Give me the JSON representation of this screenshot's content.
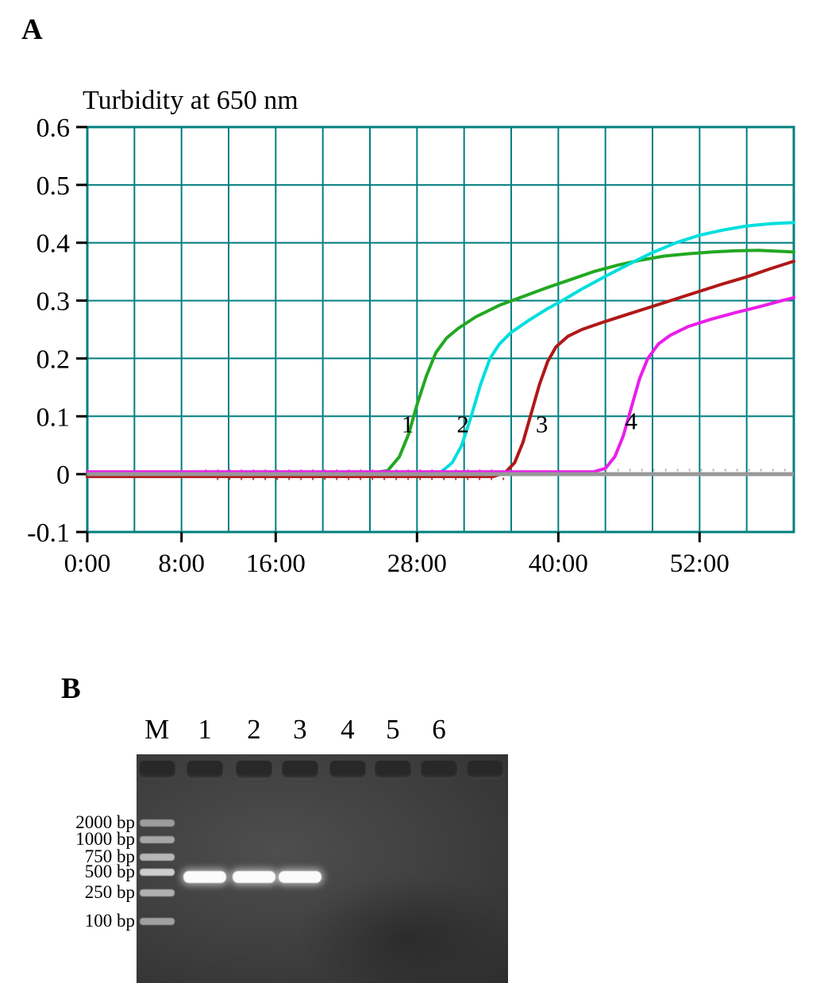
{
  "panels": {
    "a_label": "A",
    "b_label": "B"
  },
  "chart_data": {
    "type": "line",
    "title": "Turbidity at 650 nm",
    "grid_color": "#007f7f",
    "tick_color": "#000000",
    "x_axis": {
      "min": 0,
      "max": 60,
      "grid_step": 4,
      "ticks": [
        {
          "t": 0,
          "label": "0:00"
        },
        {
          "t": 8,
          "label": "8:00"
        },
        {
          "t": 16,
          "label": "16:00"
        },
        {
          "t": 28,
          "label": "28:00"
        },
        {
          "t": 40,
          "label": "40:00"
        },
        {
          "t": 52,
          "label": "52:00"
        }
      ]
    },
    "y_axis": {
      "min": -0.1,
      "max": 0.6,
      "grid_step": 0.1,
      "ticks": [
        {
          "v": 0.6,
          "label": "0.6"
        },
        {
          "v": 0.5,
          "label": "0.5"
        },
        {
          "v": 0.4,
          "label": "0.4"
        },
        {
          "v": 0.3,
          "label": "0.3"
        },
        {
          "v": 0.2,
          "label": "0.2"
        },
        {
          "v": 0.1,
          "label": "0.1"
        },
        {
          "v": 0,
          "label": "0"
        },
        {
          "v": -0.1,
          "label": "-0.1"
        }
      ]
    },
    "baseline": {
      "name": "negative-control-baseline",
      "color": "#989898",
      "v": 0
    },
    "series": [
      {
        "name": "1",
        "color": "#22a822",
        "points": [
          [
            0,
            0.002
          ],
          [
            10,
            0.002
          ],
          [
            20,
            0.002
          ],
          [
            24,
            0.002
          ],
          [
            25.5,
            0.006
          ],
          [
            26.5,
            0.03
          ],
          [
            27.3,
            0.07
          ],
          [
            28,
            0.12
          ],
          [
            28.8,
            0.17
          ],
          [
            29.6,
            0.21
          ],
          [
            30.5,
            0.235
          ],
          [
            31.5,
            0.252
          ],
          [
            33,
            0.272
          ],
          [
            35,
            0.292
          ],
          [
            37,
            0.307
          ],
          [
            39,
            0.322
          ],
          [
            41,
            0.336
          ],
          [
            43,
            0.35
          ],
          [
            45,
            0.361
          ],
          [
            47,
            0.37
          ],
          [
            49,
            0.377
          ],
          [
            51,
            0.381
          ],
          [
            53,
            0.384
          ],
          [
            55,
            0.386
          ],
          [
            57,
            0.387
          ],
          [
            59,
            0.385
          ],
          [
            60,
            0.384
          ]
        ]
      },
      {
        "name": "2",
        "color": "#00dede",
        "points": [
          [
            0,
            -0.003
          ],
          [
            10,
            -0.003
          ],
          [
            20,
            -0.003
          ],
          [
            29,
            -0.003
          ],
          [
            30,
            0.003
          ],
          [
            31,
            0.02
          ],
          [
            31.8,
            0.05
          ],
          [
            32.6,
            0.1
          ],
          [
            33.4,
            0.155
          ],
          [
            34.2,
            0.2
          ],
          [
            35,
            0.225
          ],
          [
            36,
            0.245
          ],
          [
            37.5,
            0.266
          ],
          [
            39,
            0.285
          ],
          [
            40.5,
            0.302
          ],
          [
            42,
            0.32
          ],
          [
            44,
            0.342
          ],
          [
            46,
            0.363
          ],
          [
            48,
            0.383
          ],
          [
            50,
            0.4
          ],
          [
            52,
            0.413
          ],
          [
            54,
            0.422
          ],
          [
            56,
            0.429
          ],
          [
            58,
            0.433
          ],
          [
            60,
            0.435
          ]
        ]
      },
      {
        "name": "3",
        "color": "#b01818",
        "points": [
          [
            0,
            -0.004
          ],
          [
            10,
            -0.004
          ],
          [
            20,
            -0.004
          ],
          [
            34.5,
            -0.004
          ],
          [
            35.5,
            0.003
          ],
          [
            36.3,
            0.02
          ],
          [
            37,
            0.055
          ],
          [
            37.7,
            0.105
          ],
          [
            38.4,
            0.155
          ],
          [
            39.1,
            0.195
          ],
          [
            39.8,
            0.22
          ],
          [
            40.8,
            0.238
          ],
          [
            42,
            0.25
          ],
          [
            44,
            0.264
          ],
          [
            46,
            0.277
          ],
          [
            48,
            0.29
          ],
          [
            50,
            0.303
          ],
          [
            52,
            0.316
          ],
          [
            54,
            0.329
          ],
          [
            56,
            0.341
          ],
          [
            58,
            0.355
          ],
          [
            60,
            0.368
          ]
        ]
      },
      {
        "name": "4",
        "color": "#ea1eea",
        "points": [
          [
            0,
            0.004
          ],
          [
            10,
            0.004
          ],
          [
            20,
            0.004
          ],
          [
            30,
            0.004
          ],
          [
            43,
            0.004
          ],
          [
            44,
            0.01
          ],
          [
            44.8,
            0.03
          ],
          [
            45.5,
            0.065
          ],
          [
            46.2,
            0.115
          ],
          [
            46.9,
            0.165
          ],
          [
            47.6,
            0.2
          ],
          [
            48.5,
            0.225
          ],
          [
            49.5,
            0.24
          ],
          [
            51,
            0.255
          ],
          [
            53,
            0.268
          ],
          [
            55,
            0.279
          ],
          [
            57,
            0.289
          ],
          [
            59,
            0.3
          ],
          [
            60,
            0.305
          ]
        ]
      }
    ],
    "noise_segments": [
      {
        "color": "#ea1eea",
        "v": 0.006,
        "t0": 10,
        "t1": 35
      },
      {
        "color": "#b01818",
        "v": -0.008,
        "t0": 11,
        "t1": 36
      },
      {
        "color": "#aaaaaa",
        "v": 0.007,
        "t0": 44,
        "t1": 60
      }
    ],
    "annotations": [
      {
        "text": "1",
        "t": 27.2,
        "v": 0.072
      },
      {
        "text": "2",
        "t": 31.9,
        "v": 0.072
      },
      {
        "text": "3",
        "t": 38.6,
        "v": 0.072
      },
      {
        "text": "4",
        "t": 46.2,
        "v": 0.078
      }
    ]
  },
  "gel": {
    "lanes": [
      {
        "label": "M",
        "x": 0.055,
        "type": "ladder",
        "band": false
      },
      {
        "label": "1",
        "x": 0.184,
        "band": true
      },
      {
        "label": "2",
        "x": 0.316,
        "band": true
      },
      {
        "label": "3",
        "x": 0.44,
        "band": true
      },
      {
        "label": "4",
        "x": 0.568,
        "band": false
      },
      {
        "label": "5",
        "x": 0.69,
        "band": false
      },
      {
        "label": "6",
        "x": 0.814,
        "band": false
      },
      {
        "label": "",
        "x": 0.938,
        "band": false
      }
    ],
    "product_band_y": 0.538,
    "ladder_bands": [
      {
        "label": "2000 bp",
        "y": 0.3,
        "color": "#9c9c9c"
      },
      {
        "label": "1000 bp",
        "y": 0.372,
        "color": "#a6a6a6"
      },
      {
        "label": "750 bp",
        "y": 0.448,
        "color": "#b6b6b6"
      },
      {
        "label": "500 bp",
        "y": 0.515,
        "color": "#cdcdcd"
      },
      {
        "label": "250 bp",
        "y": 0.603,
        "color": "#b0b0b0"
      },
      {
        "label": "100 bp",
        "y": 0.73,
        "color": "#a0a0a0"
      }
    ]
  }
}
